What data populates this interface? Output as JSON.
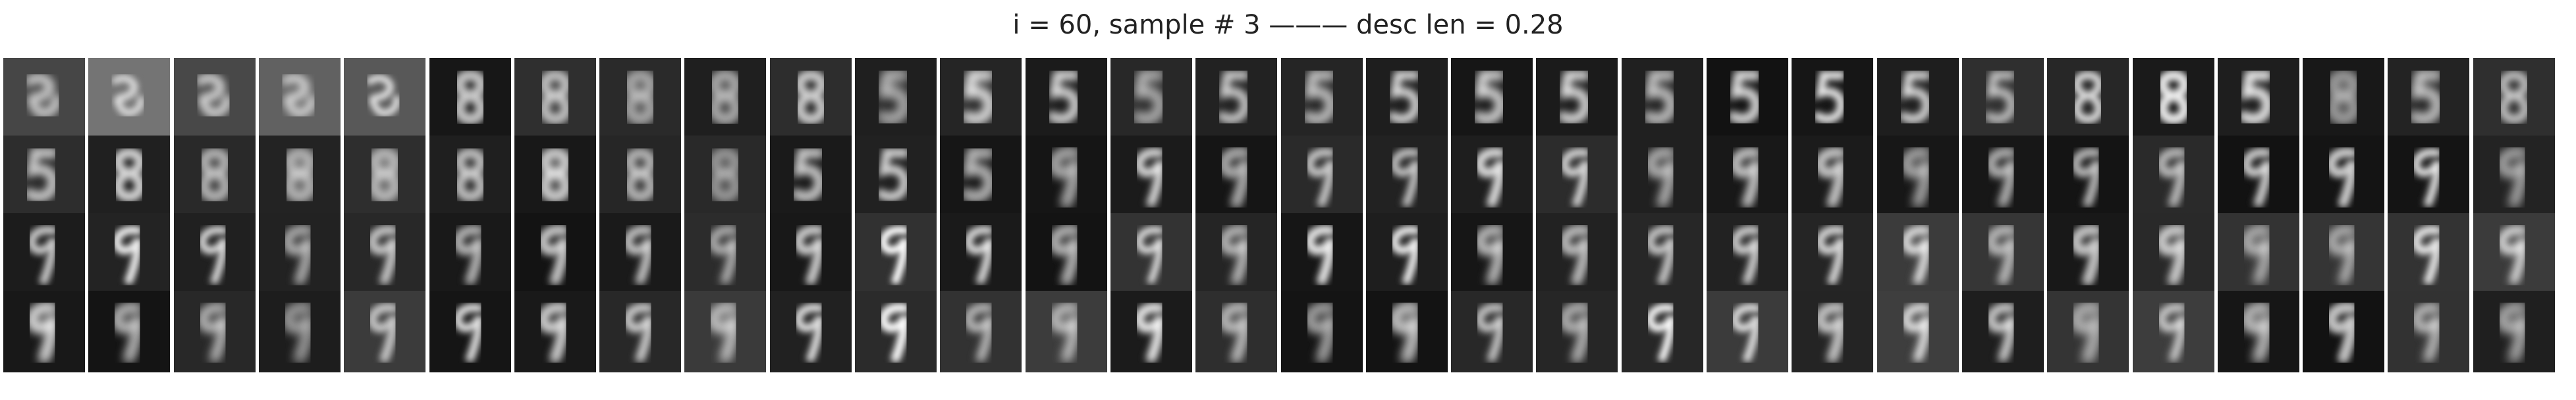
{
  "figure": {
    "title": "i = 60, sample # 3 ——— desc len = 0.28",
    "rows": 4,
    "columns": 30,
    "colormap": "grayscale",
    "tile_content": "reconstructed handwritten digit images (digits progressing from noisy shapes to 5/8 and then 9)"
  }
}
